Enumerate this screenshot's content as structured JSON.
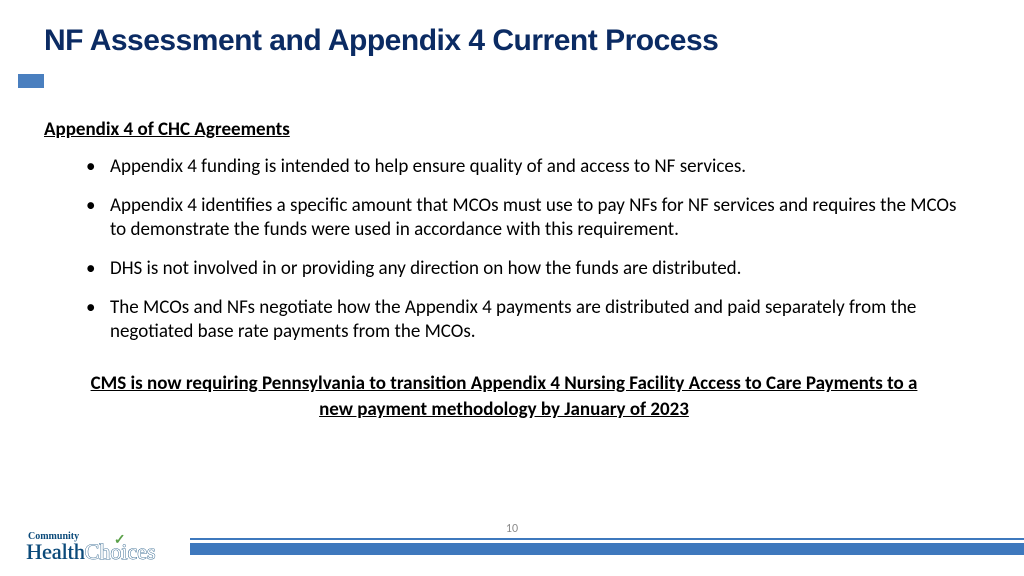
{
  "title": "NF Assessment and Appendix 4 Current Process",
  "section_heading": "Appendix 4 of CHC Agreements",
  "bullets": [
    "Appendix 4 funding is intended to help ensure quality of and access to NF services.",
    "Appendix 4 identifies a specific amount that MCOs must use to pay NFs for NF services and requires the MCOs to demonstrate the funds were used in accordance with this requirement.",
    "DHS is not involved in or providing any direction on how the funds are distributed.",
    "The MCOs and NFs negotiate how the Appendix 4 payments are distributed and paid separately from the negotiated base rate payments from the MCOs."
  ],
  "callout": "CMS is now requiring Pennsylvania to transition Appendix 4 Nursing Facility Access to Care Payments to a new payment methodology by January of 2023",
  "page_number": "10",
  "logo": {
    "top": "Community",
    "health": "Health",
    "choices": "Choices"
  },
  "colors": {
    "title": "#0b2b63",
    "accent": "#4a7fbf",
    "footer_bar": "#3e78bd",
    "logo": "#0b4a7a",
    "check": "#5aa048",
    "pagenum": "#8a8a8a"
  }
}
